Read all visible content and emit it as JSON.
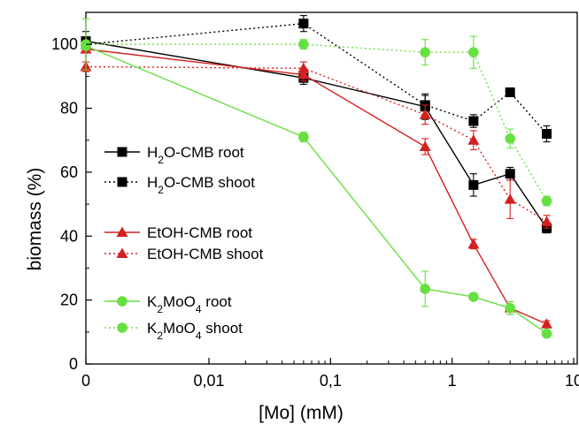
{
  "chart_data": {
    "type": "line",
    "x_scale": "log",
    "xlabel": "[Mo] (mM)",
    "ylabel": "biomass (%)",
    "xlim": [
      0,
      10
    ],
    "ylim": [
      0,
      110
    ],
    "x_ticks": [
      {
        "value": 0,
        "label": "0"
      },
      {
        "value": 0.01,
        "label": "0,01"
      },
      {
        "value": 0.1,
        "label": "0,1"
      },
      {
        "value": 1,
        "label": "1"
      },
      {
        "value": 10,
        "label": "10"
      }
    ],
    "y_ticks": [
      0,
      20,
      40,
      60,
      80,
      100
    ],
    "grid": false,
    "legend_position": "left",
    "series": [
      {
        "name": "H2O-CMB root",
        "name_parts": [
          {
            "text": "H"
          },
          {
            "text": "2",
            "sub": true
          },
          {
            "text": "O-CMB root"
          }
        ],
        "color": "#000000",
        "dash": "solid",
        "marker": "square",
        "points": [
          [
            0,
            101
          ],
          [
            0.06,
            89.5
          ],
          [
            0.6,
            80.5
          ],
          [
            1.5,
            56
          ],
          [
            3,
            59.5
          ],
          [
            6,
            42.5
          ]
        ],
        "errors": [
          3,
          2,
          4,
          3.5,
          2,
          1.5
        ]
      },
      {
        "name": "H2O-CMB shoot",
        "name_parts": [
          {
            "text": "H"
          },
          {
            "text": "2",
            "sub": true
          },
          {
            "text": "O-CMB shoot"
          }
        ],
        "color": "#000000",
        "dash": "dotted",
        "marker": "square",
        "points": [
          [
            0,
            100
          ],
          [
            0.06,
            106.5
          ],
          [
            0.6,
            81
          ],
          [
            1.5,
            76
          ],
          [
            3,
            85
          ],
          [
            6,
            72
          ]
        ],
        "errors": [
          2,
          2.5,
          3,
          2,
          1,
          2.5
        ]
      },
      {
        "name": "EtOH-CMB root",
        "name_parts": [
          {
            "text": "EtOH-CMB root"
          }
        ],
        "color": "#d42020",
        "dash": "solid",
        "marker": "triangle",
        "points": [
          [
            0,
            98.5
          ],
          [
            0.06,
            90.5
          ],
          [
            0.6,
            68
          ],
          [
            1.5,
            37.5
          ],
          [
            3,
            17.5
          ],
          [
            6,
            12.5
          ]
        ],
        "errors": [
          1,
          2,
          2.5,
          1.5,
          2,
          1
        ]
      },
      {
        "name": "EtOH-CMB shoot",
        "name_parts": [
          {
            "text": "EtOH-CMB shoot"
          }
        ],
        "color": "#d42020",
        "dash": "dotted",
        "marker": "triangle",
        "points": [
          [
            0,
            93
          ],
          [
            0.06,
            92.5
          ],
          [
            0.6,
            78
          ],
          [
            1.5,
            70
          ],
          [
            3,
            51.5
          ],
          [
            6,
            44.5
          ]
        ],
        "errors": [
          1.5,
          2,
          3,
          3,
          6,
          2
        ]
      },
      {
        "name": "K2MoO4 root",
        "name_parts": [
          {
            "text": "K"
          },
          {
            "text": "2",
            "sub": true
          },
          {
            "text": "MoO"
          },
          {
            "text": "4",
            "sub": true
          },
          {
            "text": " root"
          }
        ],
        "color": "#66e040",
        "dash": "solid",
        "marker": "circle",
        "points": [
          [
            0,
            99.5
          ],
          [
            0.06,
            71
          ],
          [
            0.6,
            23.5
          ],
          [
            1.5,
            21
          ],
          [
            3,
            17.5
          ],
          [
            6,
            9.5
          ]
        ],
        "errors": [
          1,
          1.5,
          5.5,
          1,
          2,
          1
        ]
      },
      {
        "name": "K2MoO4 shoot",
        "name_parts": [
          {
            "text": "K"
          },
          {
            "text": "2",
            "sub": true
          },
          {
            "text": "MoO"
          },
          {
            "text": "4",
            "sub": true
          },
          {
            "text": " shoot"
          }
        ],
        "color": "#66e040",
        "dash": "dotted",
        "marker": "circle",
        "points": [
          [
            0,
            100
          ],
          [
            0.06,
            100
          ],
          [
            0.6,
            97.5
          ],
          [
            1.5,
            97.5
          ],
          [
            3,
            70.5
          ],
          [
            6,
            51
          ]
        ],
        "errors": [
          8,
          1.5,
          4,
          5,
          3,
          1.5
        ]
      }
    ]
  }
}
